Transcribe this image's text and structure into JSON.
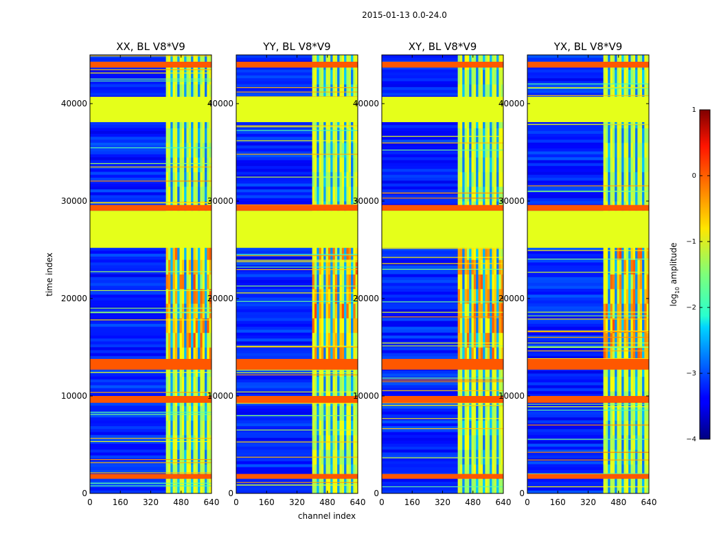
{
  "chart_data": {
    "type": "heatmap",
    "suptitle": "2015-01-13 0.0-24.0",
    "xlabel": "channel index",
    "ylabel": "time index",
    "xlim": [
      0,
      640
    ],
    "ylim": [
      0,
      45000
    ],
    "xticks": [
      0,
      160,
      320,
      480,
      640
    ],
    "yticks": [
      0,
      10000,
      20000,
      30000,
      40000
    ],
    "panels": [
      {
        "title": "XX, BL V8*V9"
      },
      {
        "title": "YY, BL V8*V9"
      },
      {
        "title": "XY, BL V8*V9"
      },
      {
        "title": "YX, BL V8*V9"
      }
    ],
    "colorbar": {
      "label": "log$_{10}$ amplitude",
      "label_main": "log",
      "label_sub": "10",
      "label_rest": " amplitude",
      "range": [
        -4,
        1
      ],
      "ticks": [
        1,
        0,
        -1,
        -2,
        -3,
        -4
      ],
      "tick_labels": [
        "1",
        "0",
        "−1",
        "−2",
        "−3",
        "−4"
      ]
    },
    "flagged_value": -1,
    "flagged_time_bands": [
      [
        25200,
        29000
      ],
      [
        38100,
        40700
      ]
    ],
    "high_time_bands": [
      [
        1500,
        2000
      ],
      [
        9300,
        10000
      ],
      [
        12700,
        13800
      ],
      [
        29000,
        29600
      ],
      [
        43700,
        44300
      ]
    ],
    "active_channel_range": [
      400,
      640
    ]
  }
}
